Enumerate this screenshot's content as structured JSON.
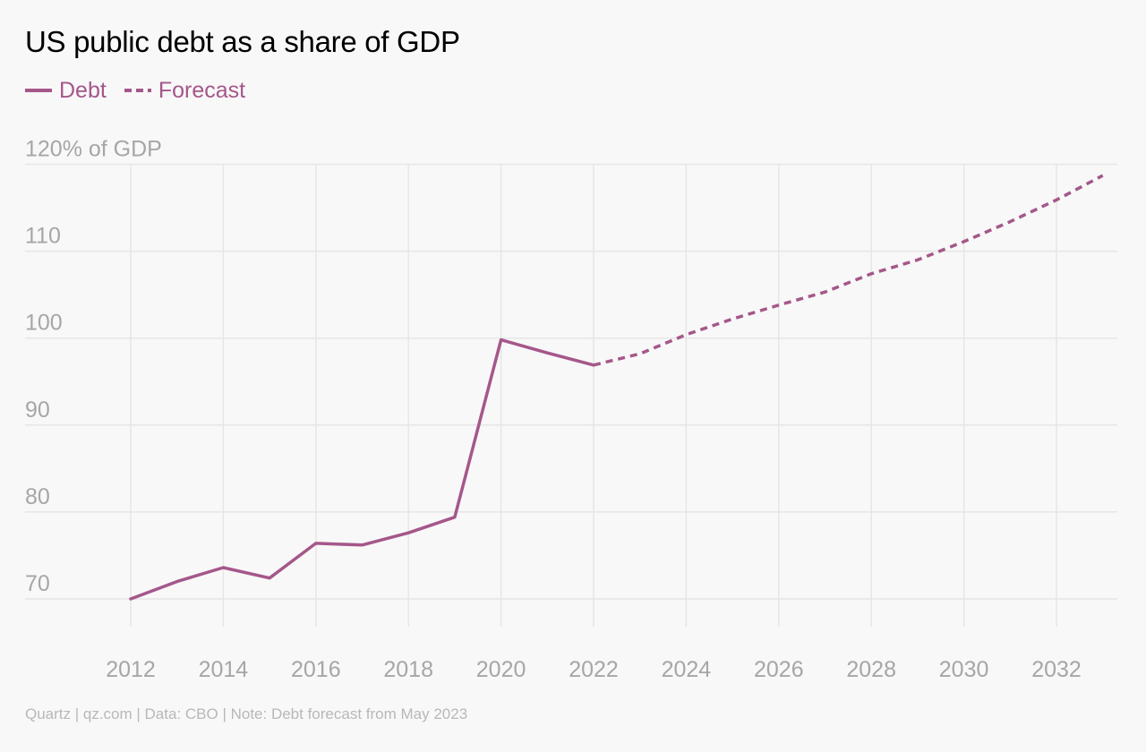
{
  "chart_data": {
    "type": "line",
    "title": "US public debt as a share of GDP",
    "y_unit_label": "120% of GDP",
    "ylim": [
      65,
      123
    ],
    "xlim": [
      2011.4,
      2033.3
    ],
    "x_ticks": [
      2012,
      2014,
      2016,
      2018,
      2020,
      2022,
      2024,
      2026,
      2028,
      2030,
      2032
    ],
    "y_ticks": [
      {
        "value": 120,
        "label": "120% of GDP"
      },
      {
        "value": 110,
        "label": "110"
      },
      {
        "value": 100,
        "label": "100"
      },
      {
        "value": 90,
        "label": "90"
      },
      {
        "value": 80,
        "label": "80"
      },
      {
        "value": 70,
        "label": "70"
      }
    ],
    "grid": true,
    "legend_position": "top-left",
    "series": [
      {
        "name": "Debt",
        "style": "solid",
        "color": "#a5578a",
        "x": [
          2012,
          2013,
          2014,
          2015,
          2016,
          2017,
          2018,
          2019,
          2020,
          2021,
          2022
        ],
        "y": [
          70.0,
          72.0,
          73.6,
          72.4,
          76.4,
          76.2,
          77.6,
          79.4,
          99.8,
          98.3,
          96.9
        ]
      },
      {
        "name": "Forecast",
        "style": "dashed",
        "color": "#a5578a",
        "x": [
          2022,
          2023,
          2024,
          2025,
          2026,
          2027,
          2028,
          2029,
          2030,
          2031,
          2032,
          2033
        ],
        "y": [
          96.9,
          98.2,
          100.4,
          102.2,
          103.8,
          105.3,
          107.4,
          109.0,
          111.1,
          113.4,
          115.9,
          118.7
        ]
      }
    ]
  },
  "legend": {
    "debt_label": "Debt",
    "forecast_label": "Forecast"
  },
  "source": "Quartz | qz.com | Data: CBO | Note: Debt forecast from May 2023",
  "colors": {
    "series": "#a5578a",
    "gridline": "#e6e6e6",
    "axis_label": "#a6a6a6",
    "source_text": "#b8b8b8",
    "background": "#f8f8f8"
  }
}
